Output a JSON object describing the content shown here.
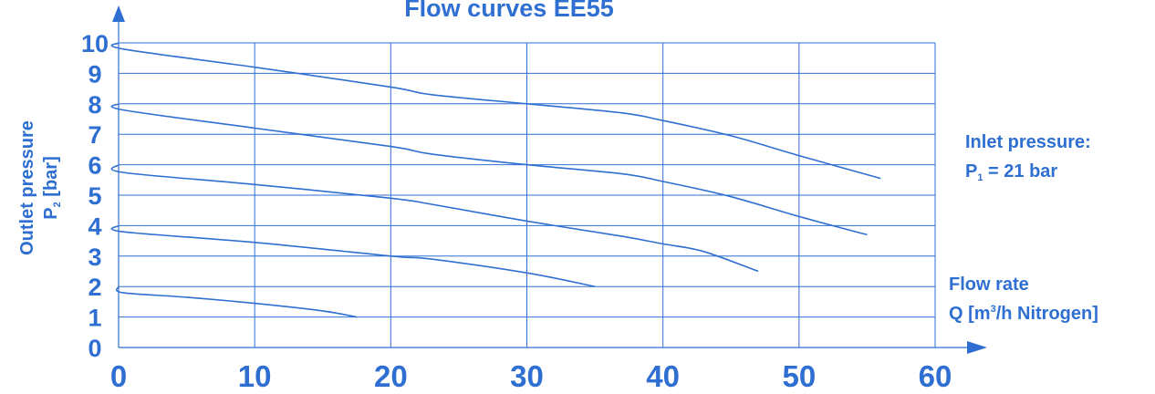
{
  "chart_data": {
    "type": "line",
    "title": "Flow curves EE55",
    "xlabel": "Flow rate",
    "xlabel_line2": {
      "prefix": "Q [m",
      "sup": "3",
      "suffix": "/h Nitrogen]"
    },
    "ylabel": "Outlet pressure",
    "ylabel_line2": {
      "prefix": "P",
      "sub": "2",
      "suffix": " [bar]"
    },
    "annotation_line1": "Inlet pressure:",
    "annotation_line2": {
      "prefix": "P",
      "sub": "1",
      "suffix": " = 21 bar"
    },
    "xlim": [
      0,
      60
    ],
    "ylim": [
      0,
      10
    ],
    "x_ticks": [
      0,
      10,
      20,
      30,
      40,
      50,
      60
    ],
    "y_ticks": [
      0,
      1,
      2,
      3,
      4,
      5,
      6,
      7,
      8,
      9,
      10
    ],
    "grid": true,
    "colors": {
      "text": "#2f6fd1",
      "axis": "#2f6fd1",
      "grid": "#2f6fd1",
      "line": "#2f6fd1"
    },
    "series": [
      {
        "points": [
          [
            0,
            10
          ],
          [
            0.3,
            9.8
          ],
          [
            10,
            9.2
          ],
          [
            20,
            8.55
          ],
          [
            23,
            8.3
          ],
          [
            30,
            8.0
          ],
          [
            37,
            7.7
          ],
          [
            40,
            7.45
          ],
          [
            45,
            6.95
          ],
          [
            50,
            6.3
          ],
          [
            56,
            5.55
          ]
        ]
      },
      {
        "points": [
          [
            0,
            8
          ],
          [
            0.3,
            7.8
          ],
          [
            10,
            7.2
          ],
          [
            20,
            6.6
          ],
          [
            23,
            6.35
          ],
          [
            30,
            6.0
          ],
          [
            37,
            5.7
          ],
          [
            40,
            5.45
          ],
          [
            45,
            4.95
          ],
          [
            50,
            4.3
          ],
          [
            55,
            3.7
          ]
        ]
      },
      {
        "points": [
          [
            0,
            6
          ],
          [
            0.3,
            5.75
          ],
          [
            10,
            5.35
          ],
          [
            20,
            4.9
          ],
          [
            23,
            4.7
          ],
          [
            30,
            4.15
          ],
          [
            37,
            3.65
          ],
          [
            40,
            3.4
          ],
          [
            43,
            3.15
          ],
          [
            47,
            2.5
          ]
        ]
      },
      {
        "points": [
          [
            0,
            4
          ],
          [
            0.3,
            3.8
          ],
          [
            10,
            3.45
          ],
          [
            20,
            3.0
          ],
          [
            23,
            2.9
          ],
          [
            30,
            2.45
          ],
          [
            35,
            2.0
          ]
        ]
      },
      {
        "points": [
          [
            0,
            2
          ],
          [
            0.3,
            1.8
          ],
          [
            5,
            1.65
          ],
          [
            10,
            1.45
          ],
          [
            15,
            1.2
          ],
          [
            17.5,
            1.0
          ]
        ]
      }
    ]
  }
}
